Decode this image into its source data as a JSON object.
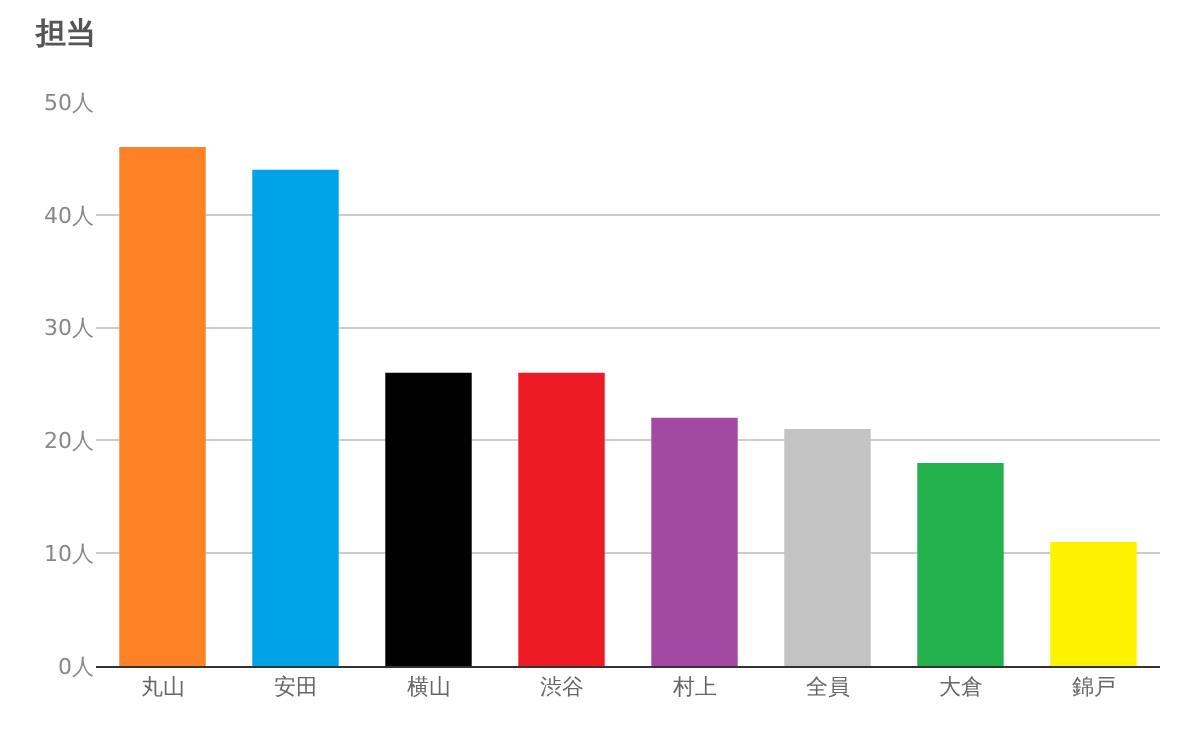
{
  "chart_data": {
    "type": "bar",
    "title": "担当",
    "categories": [
      "丸山",
      "安田",
      "横山",
      "渋谷",
      "村上",
      "全員",
      "大倉",
      "錦戸"
    ],
    "values": [
      46,
      44,
      26,
      26,
      22,
      21,
      18,
      11
    ],
    "colors": [
      "#ff8126",
      "#00a2e8",
      "#000000",
      "#ed1c24",
      "#a349a4",
      "#c3c3c3",
      "#22b14c",
      "#fff200"
    ],
    "ylim": [
      0,
      50
    ],
    "yticks": [
      {
        "value": 0,
        "label": "0人"
      },
      {
        "value": 10,
        "label": "10人"
      },
      {
        "value": 20,
        "label": "20人"
      },
      {
        "value": 30,
        "label": "30人"
      },
      {
        "value": 40,
        "label": "40人"
      },
      {
        "value": 50,
        "label": "50人"
      }
    ],
    "grid": "y",
    "legend": false
  }
}
